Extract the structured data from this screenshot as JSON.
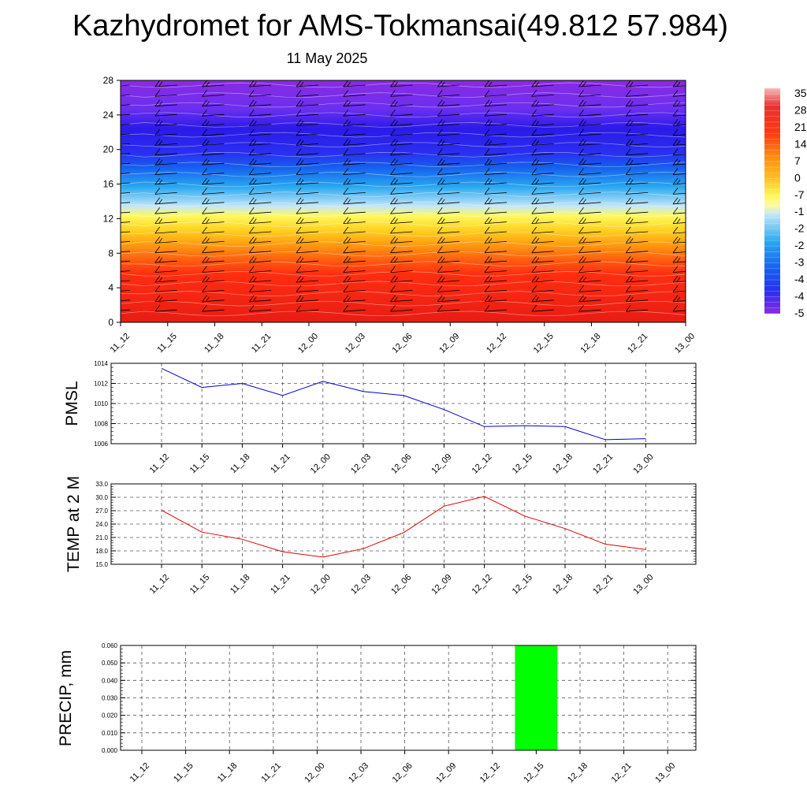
{
  "title": "Kazhydromet for AMS-Tokmansai(49.812 57.984)",
  "subtitle": "11 May 2025",
  "chart_data": [
    {
      "type": "heatmap",
      "x_labels": [
        "11_12",
        "11_15",
        "11_18",
        "11_21",
        "12_00",
        "12_03",
        "12_06",
        "12_09",
        "12_12",
        "12_15",
        "12_18",
        "12_21",
        "13_00"
      ],
      "y_ticks": [
        "0",
        "4",
        "8",
        "12",
        "16",
        "20",
        "24",
        "28"
      ],
      "ylim": [
        0,
        28
      ],
      "colorbar_labels": [
        "35",
        "28",
        "21",
        "14",
        "7",
        "0",
        "-7",
        "-1",
        "-2",
        "-2",
        "-3",
        "-4",
        "-4",
        "-5"
      ],
      "overlay": "wind barbs"
    },
    {
      "type": "line",
      "ylabel": "PMSL",
      "x": [
        "11_12",
        "11_15",
        "11_18",
        "11_21",
        "12_00",
        "12_03",
        "12_06",
        "12_09",
        "12_12",
        "12_15",
        "12_18",
        "12_21",
        "13_00"
      ],
      "y": [
        1013.5,
        1011.6,
        1012.0,
        1010.8,
        1012.2,
        1011.2,
        1010.8,
        1009.4,
        1007.7,
        1007.8,
        1007.7,
        1006.4,
        1006.5
      ],
      "ylim": [
        1006,
        1014
      ],
      "y_ticks": [
        "1006",
        "1008",
        "1010",
        "1012",
        "1014"
      ],
      "color": "#0000cc"
    },
    {
      "type": "line",
      "ylabel": "TEMP at 2 M",
      "x": [
        "11_12",
        "11_15",
        "11_18",
        "11_21",
        "12_00",
        "12_03",
        "12_06",
        "12_09",
        "12_12",
        "12_15",
        "12_18",
        "12_21",
        "13_00"
      ],
      "y": [
        27.1,
        22.2,
        20.6,
        17.8,
        16.6,
        18.5,
        22.1,
        28.0,
        30.2,
        25.8,
        23.0,
        19.5,
        18.3
      ],
      "ylim": [
        15,
        33
      ],
      "y_ticks": [
        "15.0",
        "18.0",
        "21.0",
        "24.0",
        "27.0",
        "30.0",
        "33.0"
      ],
      "color": "#dd0000"
    },
    {
      "type": "bar",
      "ylabel": "PRECIP, mm",
      "x_labels": [
        "11_12",
        "11_15",
        "11_18",
        "11_21",
        "12_00",
        "12_03",
        "12_06",
        "12_09",
        "12_12",
        "12_15",
        "12_18",
        "12_21",
        "13_00"
      ],
      "values": [
        0,
        0,
        0,
        0,
        0,
        0,
        0,
        0,
        0,
        0.06,
        0,
        0,
        0
      ],
      "ylim": [
        0,
        0.06
      ],
      "y_ticks": [
        "0.000",
        "0.010",
        "0.020",
        "0.030",
        "0.040",
        "0.050",
        "0.060"
      ],
      "color": "#00ff00"
    }
  ]
}
